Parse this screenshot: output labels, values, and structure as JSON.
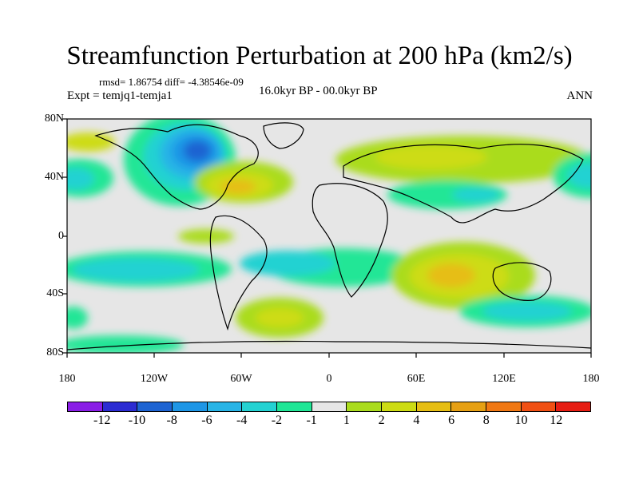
{
  "title": "Streamfunction Perturbation at 200 hPa (km2/s)",
  "stats": "rmsd= 1.86754 diff= -4.38546e-09",
  "experiment": "Expt = temjq1-temja1",
  "period": "16.0kyr BP - 00.0kyr BP",
  "season": "ANN",
  "lat_ticks": [
    "80N",
    "40N",
    "0",
    "40S",
    "80S"
  ],
  "lon_ticks": [
    "180",
    "120W",
    "60W",
    "0",
    "60E",
    "120E",
    "180"
  ],
  "colorbar": {
    "labels": [
      "-12",
      "-10",
      "-8",
      "-6",
      "-4",
      "-2",
      "-1",
      "1",
      "2",
      "4",
      "6",
      "8",
      "10",
      "12"
    ],
    "colors": [
      "#8a1ee6",
      "#2c2cd2",
      "#1e64d2",
      "#1e96e6",
      "#28b4e6",
      "#24d2d2",
      "#20e696",
      "#e6e6e6",
      "#aadc1e",
      "#cddc14",
      "#e6be14",
      "#e6a014",
      "#f07814",
      "#f05014",
      "#e61e14"
    ]
  },
  "map_features": [
    {
      "name": "north-america-low",
      "value": -9,
      "lon": -90,
      "lat": 56
    },
    {
      "name": "north-atlantic-high",
      "value": 5,
      "lon": -70,
      "lat": 32
    },
    {
      "name": "eurasia-high",
      "value": 3,
      "lon": 60,
      "lat": 50
    },
    {
      "name": "asia-low",
      "value": -3,
      "lon": 90,
      "lat": 28
    },
    {
      "name": "indian-ocean-high",
      "value": 6,
      "lon": 90,
      "lat": -28
    },
    {
      "name": "south-atlantic-high",
      "value": 4,
      "lon": -40,
      "lat": -52
    },
    {
      "name": "southern-ocean-low",
      "value": -3,
      "lon": 120,
      "lat": -50
    }
  ]
}
